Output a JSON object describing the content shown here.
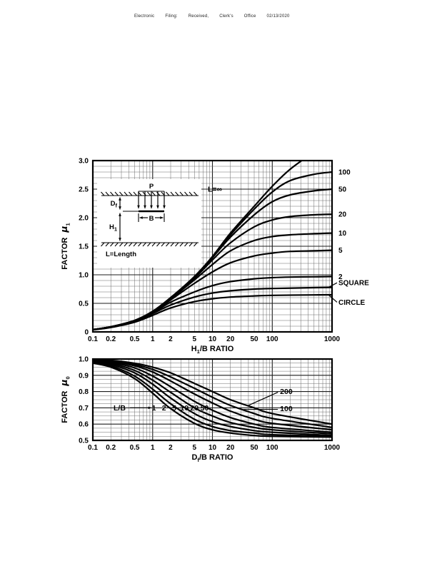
{
  "header": {
    "items": [
      "Electronic",
      "Filing:",
      "Received,",
      "Clerk's",
      "Office",
      "02/13/2020"
    ]
  },
  "chart_data": [
    {
      "id": "mu1",
      "type": "line",
      "xscale": "log",
      "xlim": [
        0.1,
        1000
      ],
      "ylim": [
        0,
        3
      ],
      "grid": "on",
      "ylabel": {
        "base": "FACTOR",
        "sym": "μ",
        "sub": "1"
      },
      "xlabel": {
        "base": "H",
        "sub": "1",
        "rest": "/B RATIO"
      },
      "xticks": [
        [
          0.1,
          "0.1"
        ],
        [
          0.2,
          "0.2"
        ],
        [
          0.5,
          "0.5"
        ],
        [
          1,
          "1"
        ],
        [
          2,
          "2"
        ],
        [
          5,
          "5"
        ],
        [
          10,
          "10"
        ],
        [
          20,
          "20"
        ],
        [
          50,
          "50"
        ],
        [
          100,
          "100"
        ],
        [
          1000,
          "1000"
        ]
      ],
      "yticks": [
        [
          0,
          "0"
        ],
        [
          0.5,
          "0.5"
        ],
        [
          1,
          "1.0"
        ],
        [
          1.5,
          "1.5"
        ],
        [
          2,
          "2.0"
        ],
        [
          2.5,
          "2.5"
        ],
        [
          3,
          "3.0"
        ]
      ],
      "y_minor": 0.1,
      "series": [
        {
          "name": "L=∞",
          "points": [
            [
              0.1,
              0.04
            ],
            [
              0.2,
              0.09
            ],
            [
              0.5,
              0.2
            ],
            [
              1,
              0.36
            ],
            [
              2,
              0.6
            ],
            [
              5,
              0.97
            ],
            [
              10,
              1.32
            ],
            [
              20,
              1.73
            ],
            [
              50,
              2.2
            ],
            [
              100,
              2.55
            ],
            [
              200,
              2.85
            ],
            [
              500,
              3.15
            ],
            [
              1000,
              3.35
            ]
          ]
        },
        {
          "name": "100",
          "points": [
            [
              0.1,
              0.04
            ],
            [
              0.2,
              0.09
            ],
            [
              0.5,
              0.2
            ],
            [
              1,
              0.36
            ],
            [
              2,
              0.6
            ],
            [
              5,
              0.96
            ],
            [
              10,
              1.31
            ],
            [
              20,
              1.7
            ],
            [
              50,
              2.15
            ],
            [
              100,
              2.45
            ],
            [
              200,
              2.65
            ],
            [
              500,
              2.76
            ],
            [
              1000,
              2.8
            ]
          ]
        },
        {
          "name": "50",
          "points": [
            [
              0.1,
              0.04
            ],
            [
              0.2,
              0.09
            ],
            [
              0.5,
              0.2
            ],
            [
              1,
              0.355
            ],
            [
              2,
              0.595
            ],
            [
              5,
              0.955
            ],
            [
              10,
              1.3
            ],
            [
              20,
              1.66
            ],
            [
              50,
              2.05
            ],
            [
              100,
              2.28
            ],
            [
              200,
              2.4
            ],
            [
              500,
              2.47
            ],
            [
              1000,
              2.5
            ]
          ]
        },
        {
          "name": "20",
          "points": [
            [
              0.1,
              0.04
            ],
            [
              0.2,
              0.09
            ],
            [
              0.5,
              0.2
            ],
            [
              1,
              0.35
            ],
            [
              2,
              0.59
            ],
            [
              5,
              0.94
            ],
            [
              10,
              1.26
            ],
            [
              20,
              1.56
            ],
            [
              50,
              1.84
            ],
            [
              100,
              1.96
            ],
            [
              200,
              2.02
            ],
            [
              500,
              2.05
            ],
            [
              1000,
              2.06
            ]
          ]
        },
        {
          "name": "10",
          "points": [
            [
              0.1,
              0.04
            ],
            [
              0.2,
              0.088
            ],
            [
              0.5,
              0.198
            ],
            [
              1,
              0.35
            ],
            [
              2,
              0.58
            ],
            [
              5,
              0.91
            ],
            [
              10,
              1.18
            ],
            [
              20,
              1.42
            ],
            [
              50,
              1.6
            ],
            [
              100,
              1.67
            ],
            [
              200,
              1.7
            ],
            [
              500,
              1.72
            ],
            [
              1000,
              1.73
            ]
          ]
        },
        {
          "name": "5",
          "points": [
            [
              0.1,
              0.04
            ],
            [
              0.2,
              0.087
            ],
            [
              0.5,
              0.195
            ],
            [
              1,
              0.34
            ],
            [
              2,
              0.56
            ],
            [
              5,
              0.85
            ],
            [
              10,
              1.05
            ],
            [
              20,
              1.21
            ],
            [
              50,
              1.33
            ],
            [
              100,
              1.38
            ],
            [
              200,
              1.41
            ],
            [
              500,
              1.42
            ],
            [
              1000,
              1.43
            ]
          ]
        },
        {
          "name": "2",
          "points": [
            [
              0.1,
              0.038
            ],
            [
              0.2,
              0.085
            ],
            [
              0.5,
              0.19
            ],
            [
              1,
              0.33
            ],
            [
              2,
              0.52
            ],
            [
              5,
              0.7
            ],
            [
              10,
              0.81
            ],
            [
              20,
              0.88
            ],
            [
              50,
              0.93
            ],
            [
              100,
              0.95
            ],
            [
              200,
              0.96
            ],
            [
              500,
              0.965
            ],
            [
              1000,
              0.97
            ]
          ]
        },
        {
          "name": "SQUARE",
          "points": [
            [
              0.1,
              0.037
            ],
            [
              0.2,
              0.082
            ],
            [
              0.5,
              0.185
            ],
            [
              1,
              0.32
            ],
            [
              2,
              0.47
            ],
            [
              5,
              0.61
            ],
            [
              10,
              0.68
            ],
            [
              20,
              0.72
            ],
            [
              50,
              0.75
            ],
            [
              100,
              0.76
            ],
            [
              500,
              0.775
            ],
            [
              1000,
              0.78
            ]
          ]
        },
        {
          "name": "CIRCLE",
          "points": [
            [
              0.1,
              0.035
            ],
            [
              0.2,
              0.078
            ],
            [
              0.5,
              0.17
            ],
            [
              1,
              0.29
            ],
            [
              2,
              0.42
            ],
            [
              5,
              0.53
            ],
            [
              10,
              0.58
            ],
            [
              20,
              0.61
            ],
            [
              50,
              0.63
            ],
            [
              100,
              0.64
            ],
            [
              500,
              0.648
            ],
            [
              1000,
              0.65
            ]
          ]
        }
      ],
      "inplot_labels": [
        {
          "text": "L=∞",
          "x": 11,
          "y": 2.5
        }
      ],
      "right_labels": [
        {
          "text": "100",
          "y": 2.8
        },
        {
          "text": "50",
          "y": 2.5
        },
        {
          "text": "20",
          "y": 2.06
        },
        {
          "text": "10",
          "y": 1.73
        },
        {
          "text": "5",
          "y": 1.43
        },
        {
          "text": "2",
          "y": 0.97
        },
        {
          "text": "SQUARE",
          "y": 0.86,
          "leader_y": 0.78
        },
        {
          "text": "CIRCLE",
          "y": 0.52,
          "leader_y": 0.65
        }
      ],
      "inset": {
        "load": "P",
        "dim1_base": "D",
        "dim1_sub": "f",
        "dim2_base": "H",
        "dim2_sub": "1",
        "width_label": "B",
        "note": "L=Length"
      }
    },
    {
      "id": "mu0",
      "type": "line",
      "xscale": "log",
      "xlim": [
        0.1,
        1000
      ],
      "ylim": [
        0.5,
        1.0
      ],
      "grid": "on",
      "ylabel": {
        "base": "FACTOR",
        "sym": "μ",
        "sub": "0"
      },
      "xlabel": {
        "base": "D",
        "sub": "f",
        "rest": "/B RATIO"
      },
      "xticks": [
        [
          0.1,
          "0.1"
        ],
        [
          0.2,
          "0.2"
        ],
        [
          0.5,
          "0.5"
        ],
        [
          1,
          "1"
        ],
        [
          2,
          "2"
        ],
        [
          5,
          "5"
        ],
        [
          10,
          "10"
        ],
        [
          20,
          "20"
        ],
        [
          50,
          "50"
        ],
        [
          100,
          "100"
        ],
        [
          1000,
          "1000"
        ]
      ],
      "yticks": [
        [
          0.5,
          "0.5"
        ],
        [
          0.6,
          "0.6"
        ],
        [
          0.7,
          "0.7"
        ],
        [
          0.8,
          "0.8"
        ],
        [
          0.9,
          "0.9"
        ],
        [
          1,
          "1.0"
        ]
      ],
      "y_minor": 0.025,
      "series": [
        {
          "name": "L/B=200",
          "points": [
            [
              0.1,
              0.996
            ],
            [
              0.2,
              0.992
            ],
            [
              0.5,
              0.974
            ],
            [
              1,
              0.95
            ],
            [
              2,
              0.915
            ],
            [
              5,
              0.85
            ],
            [
              10,
              0.8
            ],
            [
              20,
              0.75
            ],
            [
              50,
              0.7
            ],
            [
              100,
              0.665
            ],
            [
              1000,
              0.6
            ]
          ]
        },
        {
          "name": "L/B=100",
          "points": [
            [
              0.1,
              0.995
            ],
            [
              0.2,
              0.989
            ],
            [
              0.5,
              0.966
            ],
            [
              1,
              0.936
            ],
            [
              2,
              0.89
            ],
            [
              5,
              0.82
            ],
            [
              10,
              0.765
            ],
            [
              20,
              0.715
            ],
            [
              50,
              0.665
            ],
            [
              100,
              0.635
            ],
            [
              1000,
              0.58
            ]
          ]
        },
        {
          "name": "L/B=50",
          "points": [
            [
              0.1,
              0.994
            ],
            [
              0.2,
              0.985
            ],
            [
              0.5,
              0.958
            ],
            [
              1,
              0.92
            ],
            [
              2,
              0.865
            ],
            [
              5,
              0.785
            ],
            [
              10,
              0.73
            ],
            [
              20,
              0.68
            ],
            [
              50,
              0.63
            ],
            [
              100,
              0.605
            ],
            [
              1000,
              0.565
            ]
          ]
        },
        {
          "name": "L/B=20",
          "points": [
            [
              0.1,
              0.991
            ],
            [
              0.2,
              0.979
            ],
            [
              0.5,
              0.945
            ],
            [
              1,
              0.895
            ],
            [
              2,
              0.83
            ],
            [
              5,
              0.74
            ],
            [
              10,
              0.685
            ],
            [
              20,
              0.64
            ],
            [
              50,
              0.6
            ],
            [
              100,
              0.58
            ],
            [
              1000,
              0.55
            ]
          ]
        },
        {
          "name": "L/B=10",
          "points": [
            [
              0.1,
              0.988
            ],
            [
              0.2,
              0.973
            ],
            [
              0.5,
              0.93
            ],
            [
              1,
              0.87
            ],
            [
              2,
              0.795
            ],
            [
              5,
              0.7
            ],
            [
              10,
              0.65
            ],
            [
              20,
              0.61
            ],
            [
              50,
              0.58
            ],
            [
              100,
              0.565
            ],
            [
              1000,
              0.54
            ]
          ]
        },
        {
          "name": "L/B=5",
          "points": [
            [
              0.1,
              0.985
            ],
            [
              0.2,
              0.966
            ],
            [
              0.5,
              0.915
            ],
            [
              1,
              0.845
            ],
            [
              2,
              0.76
            ],
            [
              5,
              0.665
            ],
            [
              10,
              0.615
            ],
            [
              20,
              0.585
            ],
            [
              50,
              0.56
            ],
            [
              100,
              0.55
            ],
            [
              1000,
              0.53
            ]
          ]
        },
        {
          "name": "L/B=2",
          "points": [
            [
              0.1,
              0.98
            ],
            [
              0.2,
              0.958
            ],
            [
              0.5,
              0.895
            ],
            [
              1,
              0.815
            ],
            [
              2,
              0.725
            ],
            [
              5,
              0.63
            ],
            [
              10,
              0.585
            ],
            [
              20,
              0.56
            ],
            [
              50,
              0.545
            ],
            [
              100,
              0.535
            ],
            [
              1000,
              0.525
            ]
          ]
        },
        {
          "name": "L/B=1",
          "points": [
            [
              0.1,
              0.975
            ],
            [
              0.2,
              0.95
            ],
            [
              0.5,
              0.88
            ],
            [
              1,
              0.79
            ],
            [
              2,
              0.695
            ],
            [
              5,
              0.605
            ],
            [
              10,
              0.565
            ],
            [
              20,
              0.545
            ],
            [
              50,
              0.53
            ],
            [
              100,
              0.525
            ],
            [
              1000,
              0.52
            ]
          ]
        }
      ],
      "inplot_labels": [
        {
          "text": "L/B",
          "x": 0.28,
          "y": 0.7
        },
        {
          "text": "1",
          "x": 1.05,
          "y": 0.7
        },
        {
          "text": "2",
          "x": 1.55,
          "y": 0.7
        },
        {
          "text": "5",
          "x": 2.3,
          "y": 0.7
        },
        {
          "text": "10",
          "x": 3.4,
          "y": 0.7
        },
        {
          "text": "20",
          "x": 5.0,
          "y": 0.7
        },
        {
          "text": "50",
          "x": 7.4,
          "y": 0.7
        }
      ],
      "arrow": {
        "x1": 0.42,
        "x2": 0.95,
        "y": 0.7
      },
      "float_labels": [
        {
          "text": "200",
          "x": 135,
          "y": 0.8,
          "to": [
            40,
            0.715
          ]
        },
        {
          "text": "100",
          "x": 135,
          "y": 0.695,
          "to": [
            33,
            0.69
          ]
        }
      ]
    }
  ]
}
